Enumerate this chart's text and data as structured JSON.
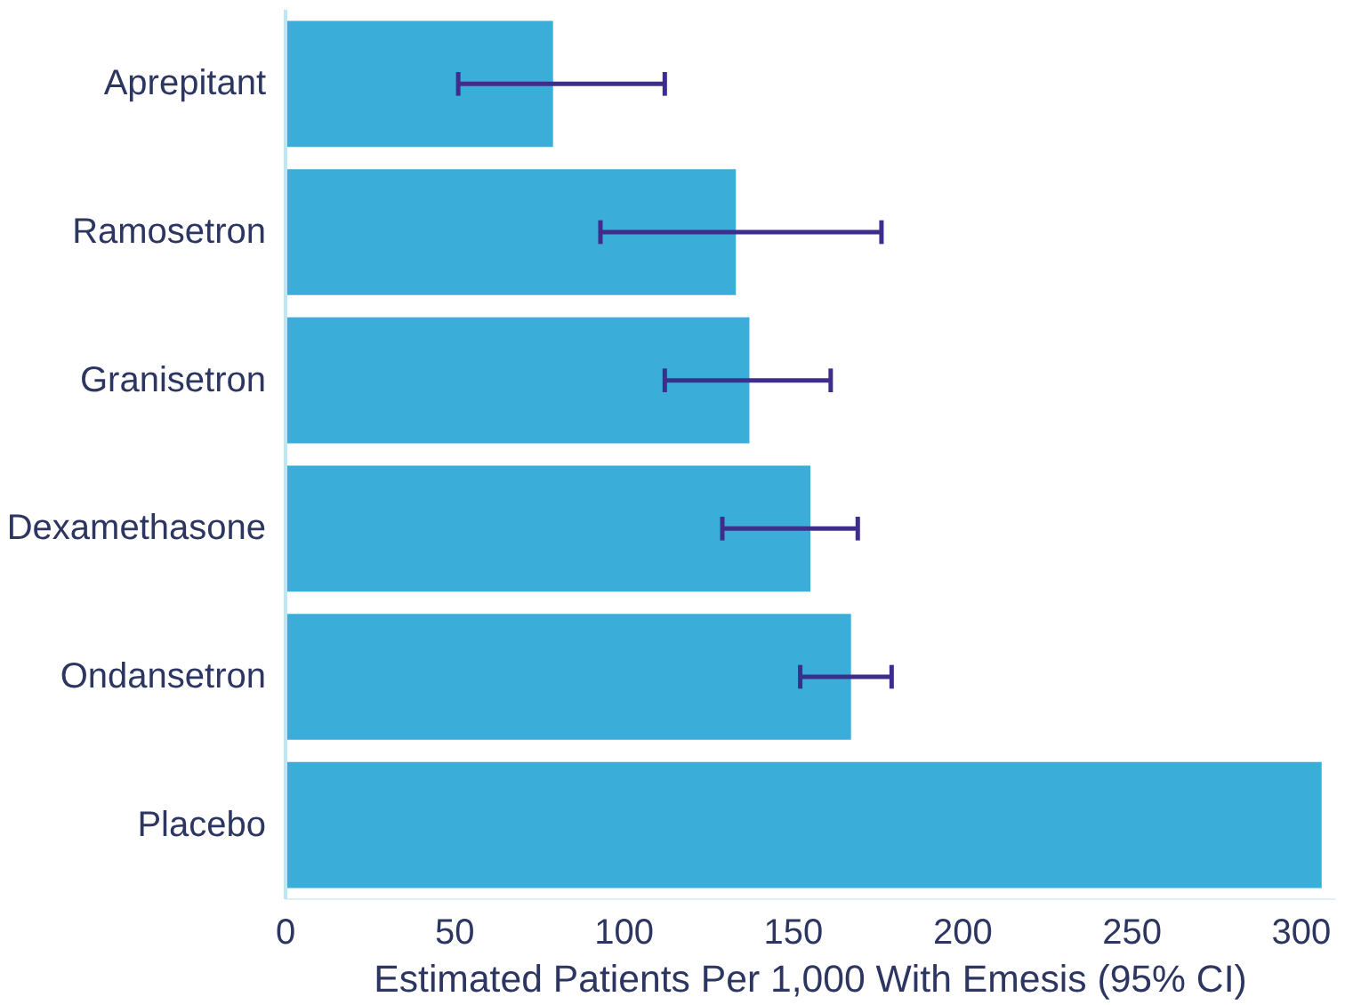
{
  "chart_data": {
    "type": "bar",
    "orientation": "horizontal",
    "xlabel": "Estimated Patients Per 1,000 With Emesis (95% CI)",
    "categories": [
      "Aprepitant",
      "Ramosetron",
      "Granisetron",
      "Dexamethasone",
      "Ondansetron",
      "Placebo"
    ],
    "values": [
      79,
      133,
      137,
      155,
      167,
      306
    ],
    "errors": [
      [
        51,
        112
      ],
      [
        93,
        176
      ],
      [
        112,
        161
      ],
      [
        129,
        169
      ],
      [
        152,
        179
      ],
      null
    ],
    "color": "#3aaed9",
    "xlim": [
      0,
      310
    ],
    "xticks": [
      0,
      50,
      100,
      150,
      200,
      250,
      300
    ],
    "grid": false
  }
}
